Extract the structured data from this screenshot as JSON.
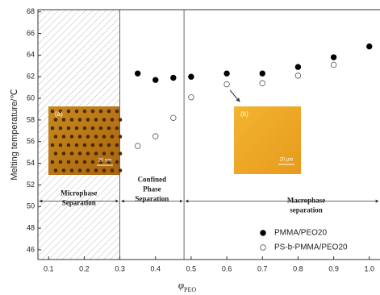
{
  "chart_data": {
    "type": "scatter",
    "y_label": "Melting temperature/℃",
    "x_label": "φ",
    "x_label_sub": "PEO",
    "x": [
      0.35,
      0.4,
      0.45,
      0.5,
      0.6,
      0.7,
      0.8,
      0.9,
      1.0
    ],
    "series": [
      {
        "name": "PMMA/PEO20",
        "color": "#000000",
        "marker": "filled",
        "values": [
          62.3,
          61.7,
          61.9,
          62.0,
          62.3,
          62.3,
          62.9,
          63.8,
          64.8
        ]
      },
      {
        "name": "PS-b-PMMA/PEO20",
        "color": "#555555",
        "marker": "open",
        "values": [
          55.6,
          56.5,
          58.2,
          60.1,
          61.3,
          61.4,
          62.1,
          63.1,
          null
        ]
      }
    ],
    "xlim": [
      0.07,
      1.03
    ],
    "ylim": [
      45.1,
      68.2
    ],
    "xticks": [
      0.1,
      0.2,
      0.3,
      0.4,
      0.5,
      0.6,
      0.7,
      0.8,
      0.9,
      {
        "value": 1,
        "label": "1.0"
      }
    ],
    "yticks": [
      46,
      48,
      50,
      52,
      54,
      56,
      58,
      60,
      62,
      64,
      66,
      68
    ],
    "boundaries": [
      0.3,
      0.48
    ],
    "regions": [
      [
        "Microphase",
        "Separation"
      ],
      [
        "Confined",
        "Phase",
        "Separation"
      ],
      [
        "Macrophase",
        "separation"
      ]
    ],
    "insets": [
      {
        "label": "(a)",
        "scale": "20 nm"
      },
      {
        "label": "(b)",
        "scale": "20 μm"
      }
    ]
  }
}
